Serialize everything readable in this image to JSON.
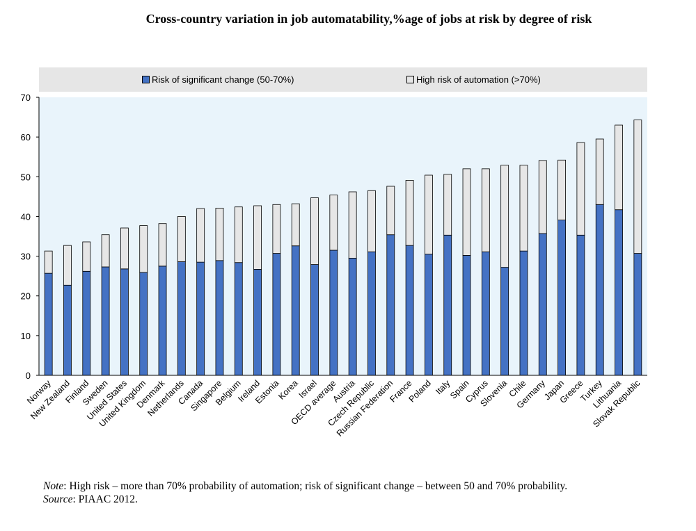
{
  "chart_data": {
    "type": "bar",
    "stacked": true,
    "title": "Cross-country variation in job automatability,%age of jobs at risk by degree of risk",
    "categories": [
      "Norway",
      "New Zealand",
      "Finland",
      "Sweden",
      "United States",
      "United Kingdom",
      "Denmark",
      "Netherlands",
      "Canada",
      "Singapore",
      "Belgium",
      "Ireland",
      "Estonia",
      "Korea",
      "Israel",
      "OECD average",
      "Austria",
      "Czech Republic",
      "Russian Federation",
      "France",
      "Poland",
      "Italy",
      "Spain",
      "Cyprus",
      "Slovenia",
      "Chile",
      "Germany",
      "Japan",
      "Greece",
      "Turkey",
      "Lithuania",
      "Slovak Republic"
    ],
    "series": [
      {
        "name": "Risk of significant change (50-70%)",
        "color": "#4472c4",
        "values": [
          25.7,
          22.7,
          26.2,
          27.3,
          26.8,
          25.9,
          27.5,
          28.6,
          28.5,
          28.9,
          28.4,
          26.7,
          30.7,
          32.6,
          27.9,
          31.5,
          29.5,
          31.1,
          35.4,
          32.7,
          30.5,
          35.3,
          30.2,
          31.1,
          27.2,
          31.3,
          35.7,
          39.1,
          35.3,
          43.0,
          41.7,
          30.7
        ]
      },
      {
        "name": "High risk of automation (>70%)",
        "color": "#e6e6e6",
        "values": [
          5.6,
          10.0,
          7.4,
          8.1,
          10.3,
          11.8,
          10.7,
          11.4,
          13.5,
          13.2,
          14.0,
          16.0,
          12.3,
          10.6,
          16.8,
          13.9,
          16.7,
          15.4,
          12.2,
          16.4,
          19.9,
          15.3,
          21.8,
          20.9,
          25.7,
          21.6,
          18.4,
          15.1,
          23.3,
          16.5,
          21.3,
          33.6
        ]
      }
    ],
    "ylim": [
      0,
      70
    ],
    "yticks": [
      0,
      10,
      20,
      30,
      40,
      50,
      60,
      70
    ],
    "legend_position": "top",
    "grid": false
  },
  "legend": {
    "item1": "Risk of significant change (50-70%)",
    "item2": "High risk of automation (>70%)"
  },
  "notes": {
    "note_label": "Note",
    "note_text": ": High risk – more than 70% probability of automation; risk of significant change – between 50 and 70% probability.",
    "source_label": "Source",
    "source_text": ": PIAAC 2012."
  }
}
